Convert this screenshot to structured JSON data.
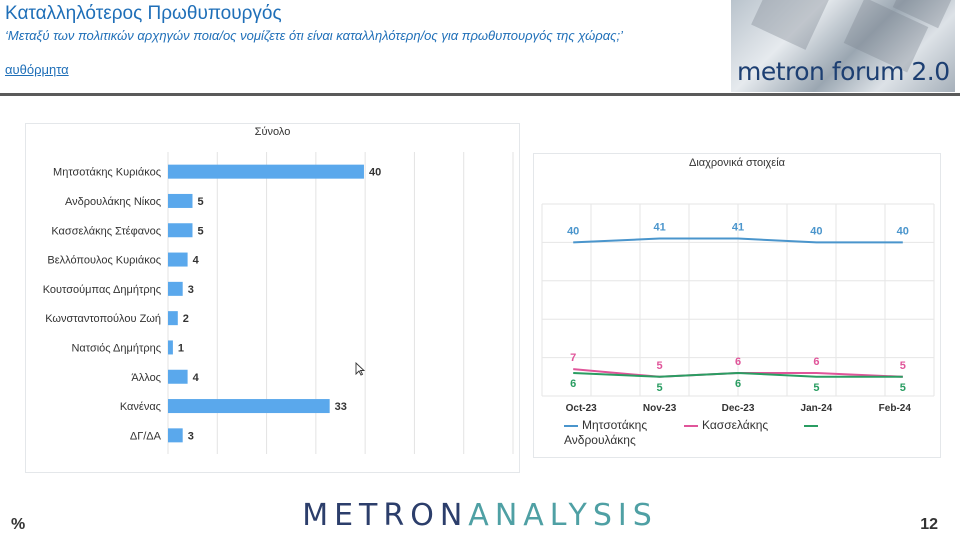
{
  "header": {
    "title": "Καταλληλότερος Πρωθυπουργός",
    "question": "‘Μεταξύ των πολιτικών αρχηγών ποια/ος νομίζετε ότι είναι καταλληλότερη/ος για πρωθυπουργός της χώρας;’",
    "mode": "αυθόρμητα"
  },
  "forum_logo": "metron forum 2.0",
  "footer": {
    "logo_part1": "METRON",
    "logo_part2": "ANALYSIS",
    "unit": "%",
    "page_number": "12"
  },
  "chart_data": [
    {
      "type": "bar",
      "orientation": "horizontal",
      "title": "Σύνολο",
      "categories": [
        "Μητσοτάκης Κυριάκος",
        "Ανδρουλάκης Νίκος",
        "Κασσελάκης Στέφανος",
        "Βελλόπουλος Κυριάκος",
        "Κουτσούμπας Δημήτρης",
        "Κωνσταντοπούλου Ζωή",
        "Νατσιός Δημήτρης",
        "Άλλος",
        "Κανένας",
        "ΔΓ/ΔΑ"
      ],
      "values": [
        40,
        5,
        5,
        4,
        3,
        2,
        1,
        4,
        33,
        3
      ],
      "xlim": [
        0,
        100
      ],
      "grid": true,
      "color": "#5aa8ec"
    },
    {
      "type": "line",
      "title": "Διαχρονικά στοιχεία",
      "categories": [
        "Oct-23",
        "Nov-23",
        "Dec-23",
        "Jan-24",
        "Feb-24"
      ],
      "series": [
        {
          "name": "Μητσοτάκης",
          "values": [
            40,
            41,
            41,
            40,
            40
          ],
          "color": "#4a95cc"
        },
        {
          "name": "Κασσελάκης",
          "values": [
            7,
            5,
            6,
            6,
            5
          ],
          "color": "#e0559a"
        },
        {
          "name": "Ανδρουλάκης",
          "values": [
            6,
            5,
            6,
            5,
            5
          ],
          "color": "#2a9d62"
        }
      ],
      "ylim": [
        0,
        50
      ],
      "grid": true,
      "legend": "bottom"
    }
  ]
}
